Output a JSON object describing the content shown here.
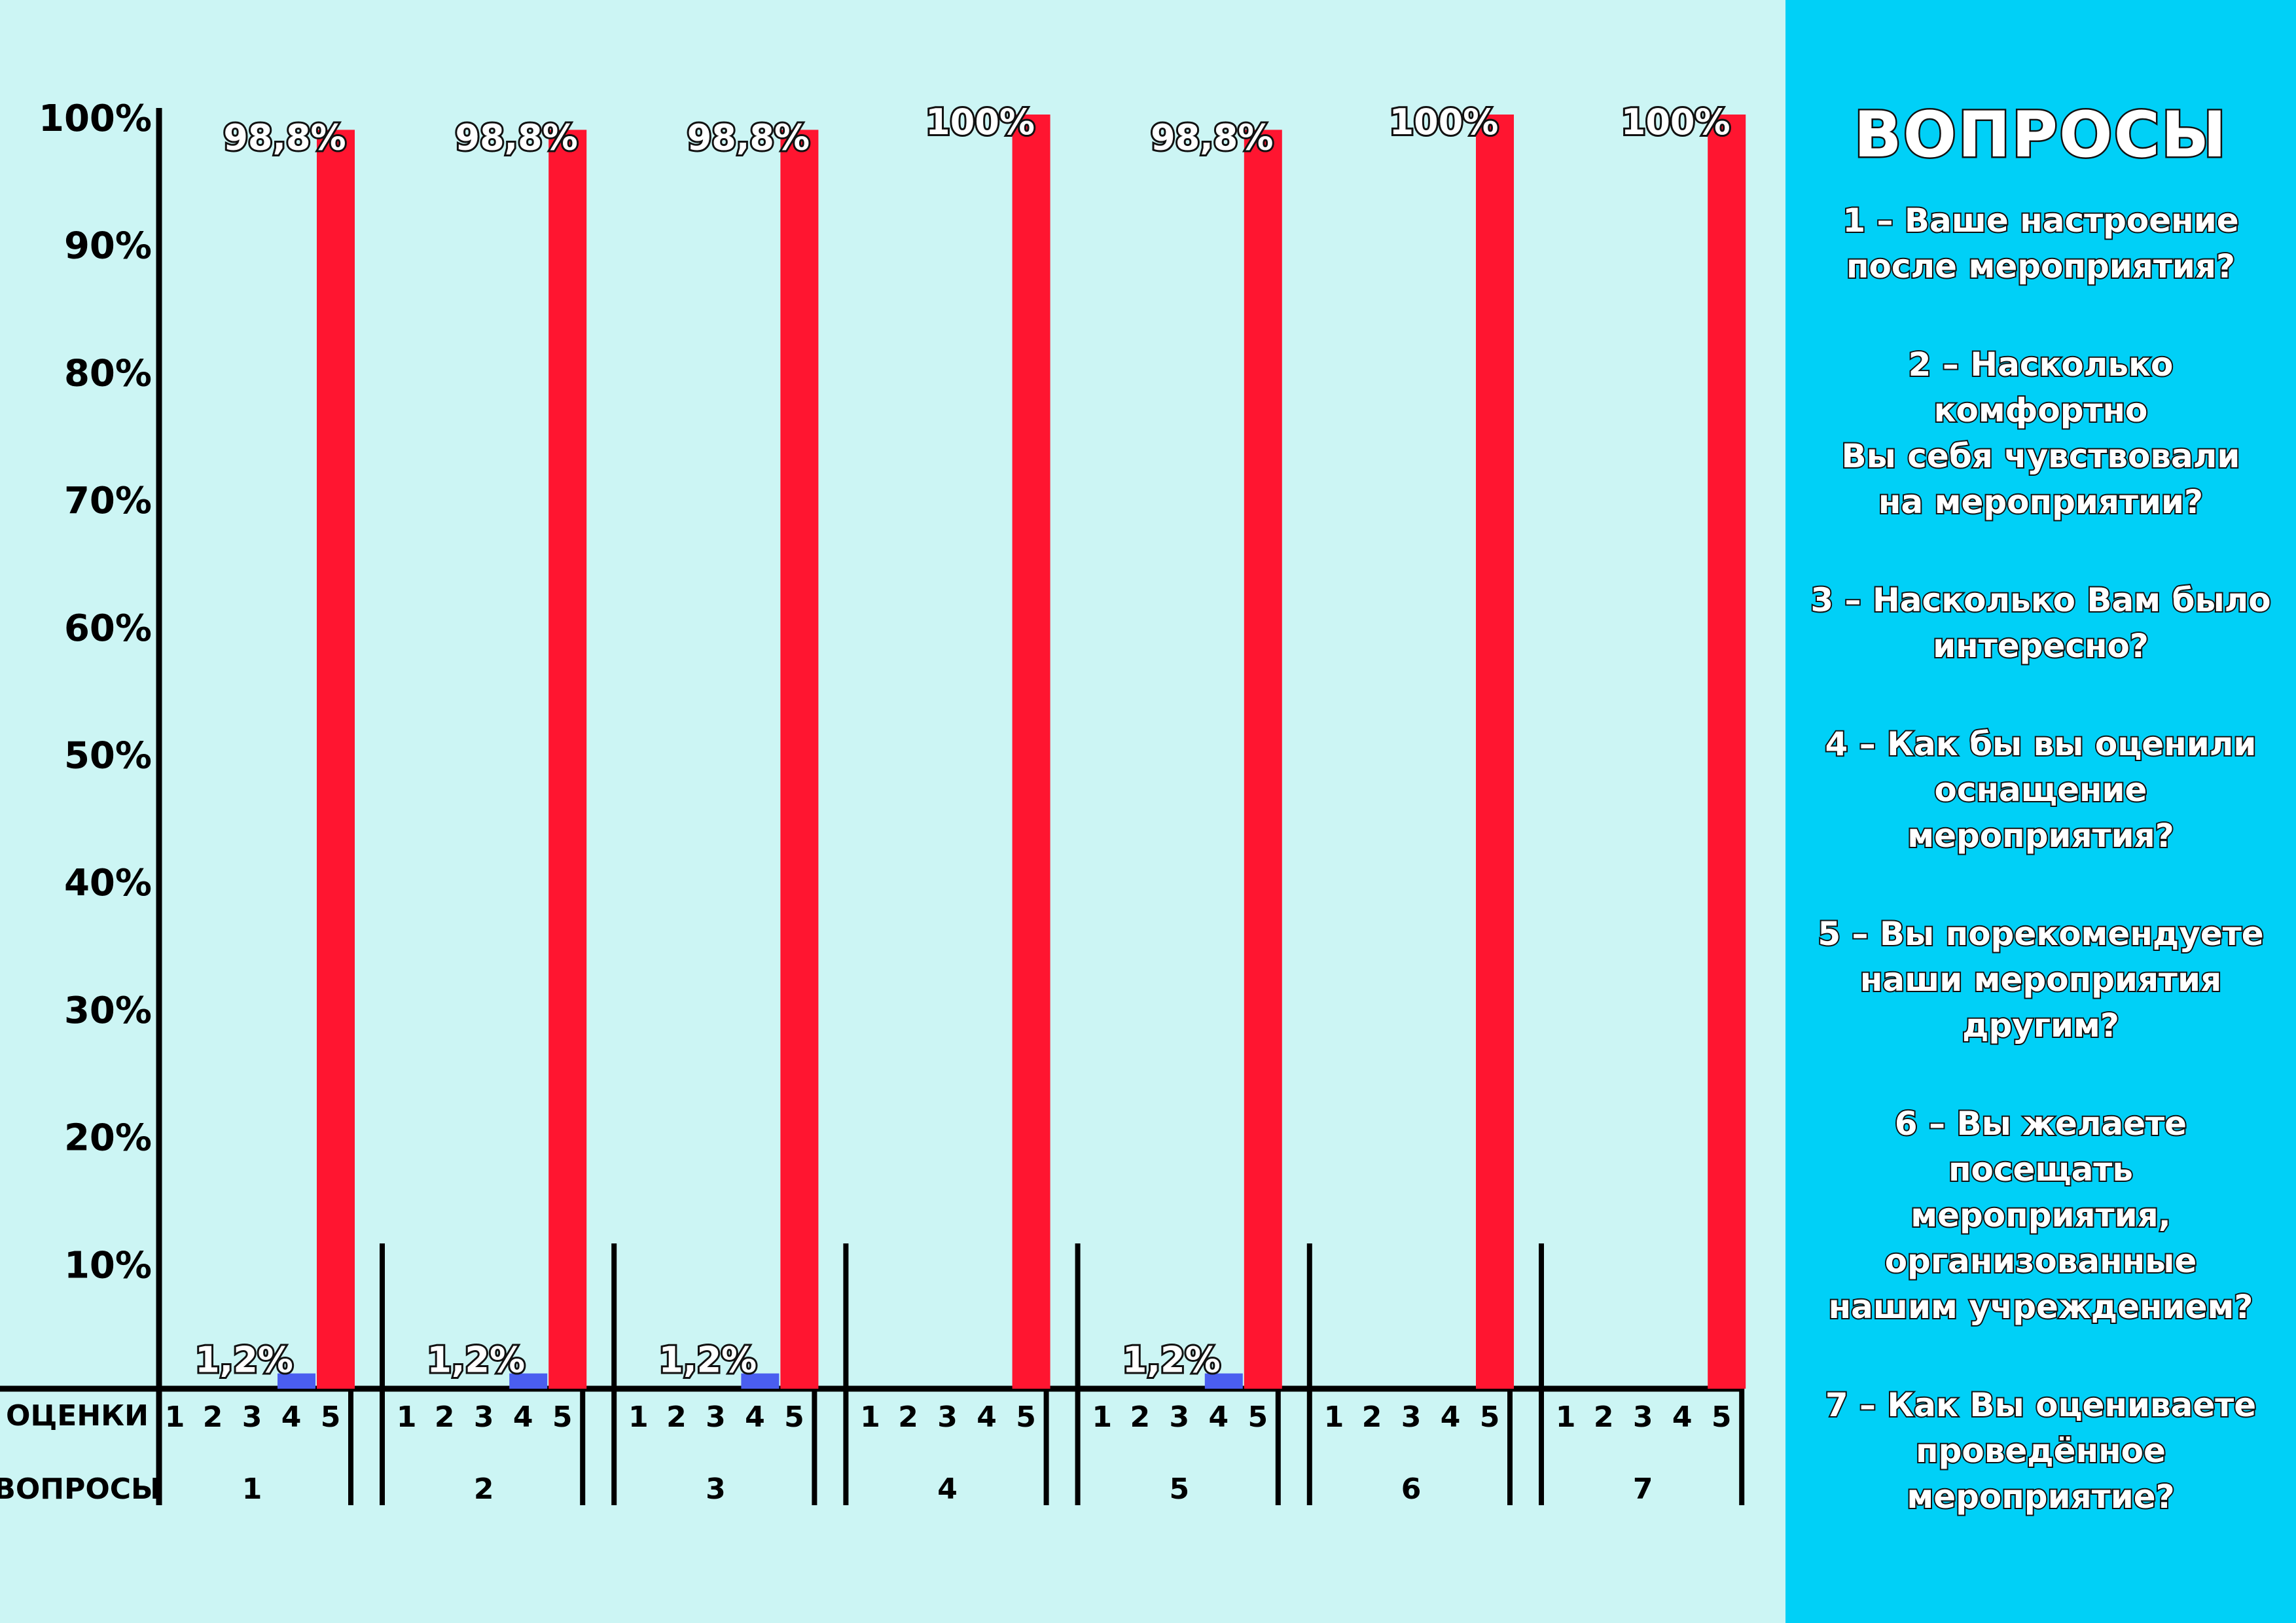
{
  "chart_data": {
    "type": "bar",
    "ylim": [
      0,
      100
    ],
    "y_ticks": [
      "10%",
      "20%",
      "30%",
      "40%",
      "50%",
      "60%",
      "70%",
      "80%",
      "90%",
      "100%"
    ],
    "x_row_labels": {
      "grades": "ОЦЕНКИ",
      "questions": "ВОПРОСЫ"
    },
    "grades": [
      "1",
      "2",
      "3",
      "4",
      "5"
    ],
    "groups": [
      {
        "question": "1",
        "values": [
          0,
          0,
          0,
          1.2,
          98.8
        ],
        "labels": [
          "",
          "",
          "",
          "1,2%",
          "98,8%"
        ]
      },
      {
        "question": "2",
        "values": [
          0,
          0,
          0,
          1.2,
          98.8
        ],
        "labels": [
          "",
          "",
          "",
          "1,2%",
          "98,8%"
        ]
      },
      {
        "question": "3",
        "values": [
          0,
          0,
          0,
          1.2,
          98.8
        ],
        "labels": [
          "",
          "",
          "",
          "1,2%",
          "98,8%"
        ]
      },
      {
        "question": "4",
        "values": [
          0,
          0,
          0,
          0,
          100
        ],
        "labels": [
          "",
          "",
          "",
          "",
          "100%"
        ]
      },
      {
        "question": "5",
        "values": [
          0,
          0,
          0,
          1.2,
          98.8
        ],
        "labels": [
          "",
          "",
          "",
          "1,2%",
          "98,8%"
        ]
      },
      {
        "question": "6",
        "values": [
          0,
          0,
          0,
          0,
          100
        ],
        "labels": [
          "",
          "",
          "",
          "",
          "100%"
        ]
      },
      {
        "question": "7",
        "values": [
          0,
          0,
          0,
          0,
          100
        ],
        "labels": [
          "",
          "",
          "",
          "",
          "100%"
        ]
      }
    ],
    "colors": {
      "grade4": "#4a5ef0",
      "grade5": "#ff1530",
      "axis": "#000000",
      "background": "#ccf5f4"
    }
  },
  "panel": {
    "title": "ВОПРОСЫ",
    "background": "#00d0f7",
    "questions": [
      "1 – Ваше настроение\nпосле мероприятия?",
      "2 – Насколько комфортно\nВы себя чувствовали\nна мероприятии?",
      "3 – Насколько Вам было\nинтересно?",
      "4 – Как бы вы оценили\nоснащение мероприятия?",
      "5 – Вы порекомендуете\nнаши мероприятия\nдругим?",
      "6 – Вы желаете посещать\nмероприятия,\nорганизованные\nнашим учреждением?",
      "7 – Как Вы оцениваете\nпроведённое\nмероприятие?"
    ]
  }
}
